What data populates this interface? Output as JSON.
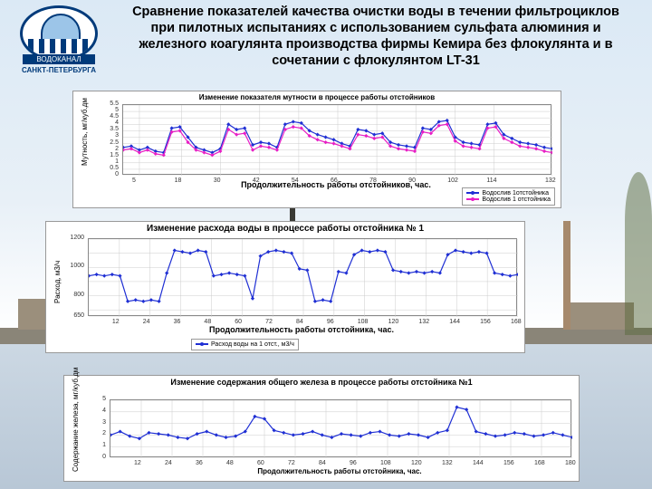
{
  "title": "Сравнение показателей качества очистки воды в течении фильтроциклов при пилотных испытаниях с использованием сульфата алюминия и железного коагулянта производства фирмы Кемира без флокулянта и в сочетании с флокулянтом LT-31",
  "logo": {
    "brand": "ВОДОКАНАЛ",
    "city": "САНКТ-ПЕТЕРБУРГА",
    "oval_border": "#003a7a"
  },
  "background": {
    "sky_top": "#dbe9f5",
    "sky_bottom": "#ffffff",
    "water": "#c3d2df",
    "shore": "#8a8578"
  },
  "chart1": {
    "type": "line",
    "title": "Изменение показателя мутности в процессе работы отстойников",
    "title_fontsize": 8,
    "ylabel": "Мутность, мг/куб.дм",
    "xlabel": "Продолжительность работы отстойников, час.",
    "xlabel_fontsize": 9,
    "legend": [
      {
        "label": "Водослив 1отстойника",
        "color": "#1f2fd4"
      },
      {
        "label": "Водослив 1 отстойника",
        "color": "#e81ec5"
      }
    ],
    "ylim": [
      0,
      5.5
    ],
    "yticks": [
      0,
      0.5,
      1,
      1.5,
      2,
      2.5,
      3,
      3.5,
      4,
      4.5,
      5,
      5.5
    ],
    "xlim": [
      0,
      132
    ],
    "xticks": [
      5,
      18,
      30,
      42,
      54,
      66,
      78,
      90,
      102,
      114,
      132
    ],
    "series": [
      {
        "color": "#1f2fd4",
        "marker": "diamond",
        "y": [
          2.2,
          2.3,
          2.0,
          2.2,
          1.9,
          1.8,
          3.7,
          3.8,
          3.0,
          2.2,
          2.0,
          1.8,
          2.1,
          4.0,
          3.6,
          3.7,
          2.4,
          2.6,
          2.5,
          2.2,
          4.0,
          4.2,
          4.1,
          3.5,
          3.2,
          3.0,
          2.8,
          2.5,
          2.3,
          3.6,
          3.5,
          3.2,
          3.3,
          2.6,
          2.4,
          2.3,
          2.2,
          3.7,
          3.6,
          4.2,
          4.3,
          3.0,
          2.6,
          2.5,
          2.4,
          4.0,
          4.1,
          3.2,
          2.9,
          2.6,
          2.5,
          2.4,
          2.2,
          2.1
        ]
      },
      {
        "color": "#e81ec5",
        "marker": "square",
        "y": [
          2.0,
          2.1,
          1.8,
          2.0,
          1.7,
          1.6,
          3.4,
          3.5,
          2.6,
          2.0,
          1.8,
          1.6,
          1.9,
          3.6,
          3.2,
          3.3,
          2.0,
          2.3,
          2.2,
          2.0,
          3.6,
          3.8,
          3.7,
          3.1,
          2.8,
          2.6,
          2.5,
          2.3,
          2.1,
          3.2,
          3.1,
          2.9,
          3.0,
          2.3,
          2.1,
          2.0,
          1.9,
          3.4,
          3.3,
          3.9,
          4.0,
          2.7,
          2.3,
          2.2,
          2.1,
          3.7,
          3.8,
          2.9,
          2.6,
          2.3,
          2.2,
          2.1,
          1.9,
          1.8
        ]
      }
    ],
    "grid_color": "#cccccc",
    "line_width": 1.2,
    "marker_size": 3
  },
  "chart2": {
    "type": "line",
    "title": "Изменение расхода воды в процессе работы отстойника № 1",
    "title_fontsize": 10,
    "ylabel": "Расход, м3/ч",
    "xlabel": "Продолжительность работы отстойника, час.",
    "legend": [
      {
        "label": "Расход воды на 1 отст., м3/ч",
        "color": "#1f2fd4"
      }
    ],
    "ylim": [
      650,
      1200
    ],
    "yticks": [
      650,
      700,
      800,
      900,
      1000,
      1100,
      1200
    ],
    "ytick_labels": [
      "650",
      "",
      "800",
      "",
      "1000",
      "",
      "1200"
    ],
    "xlim": [
      0,
      168
    ],
    "xticks": [
      12,
      24,
      36,
      48,
      60,
      72,
      84,
      96,
      108,
      120,
      132,
      144,
      156,
      168
    ],
    "series": [
      {
        "color": "#1f2fd4",
        "marker": "diamond",
        "y": [
          940,
          950,
          940,
          950,
          940,
          760,
          770,
          760,
          770,
          760,
          960,
          1120,
          1110,
          1100,
          1120,
          1110,
          940,
          950,
          960,
          950,
          940,
          780,
          1080,
          1110,
          1120,
          1110,
          1100,
          990,
          980,
          760,
          770,
          760,
          970,
          960,
          1090,
          1120,
          1110,
          1120,
          1110,
          980,
          970,
          960,
          970,
          960,
          970,
          960,
          1090,
          1120,
          1110,
          1100,
          1110,
          1100,
          960,
          950,
          940,
          950
        ]
      }
    ],
    "grid_color": "#cccccc",
    "line_width": 1.2,
    "marker_size": 3
  },
  "chart3": {
    "type": "line",
    "title": "Изменение содержания общего железа в процессе работы отстойника №1",
    "title_fontsize": 9,
    "ylabel": "Содержание железа, мг/куб.дм",
    "xlabel": "Продолжительность работы отстойника, час.",
    "ylim": [
      0,
      5
    ],
    "yticks": [
      0,
      1,
      2,
      3,
      4,
      5
    ],
    "xlim": [
      0,
      180
    ],
    "xticks": [
      12,
      24,
      36,
      48,
      60,
      72,
      84,
      96,
      108,
      120,
      132,
      144,
      156,
      168,
      180
    ],
    "series": [
      {
        "color": "#1f2fd4",
        "marker": "diamond",
        "y": [
          2.0,
          2.3,
          1.9,
          1.7,
          2.2,
          2.1,
          2.0,
          1.8,
          1.7,
          2.1,
          2.3,
          2.0,
          1.8,
          1.9,
          2.3,
          3.6,
          3.4,
          2.4,
          2.2,
          2.0,
          2.1,
          2.3,
          2.0,
          1.8,
          2.1,
          2.0,
          1.9,
          2.2,
          2.3,
          2.0,
          1.9,
          2.1,
          2.0,
          1.8,
          2.2,
          2.4,
          4.4,
          4.2,
          2.3,
          2.1,
          1.9,
          2.0,
          2.2,
          2.1,
          1.9,
          2.0,
          2.2,
          2.0,
          1.8
        ]
      }
    ],
    "grid_color": "#cccccc",
    "line_width": 1.2,
    "marker_size": 3
  }
}
